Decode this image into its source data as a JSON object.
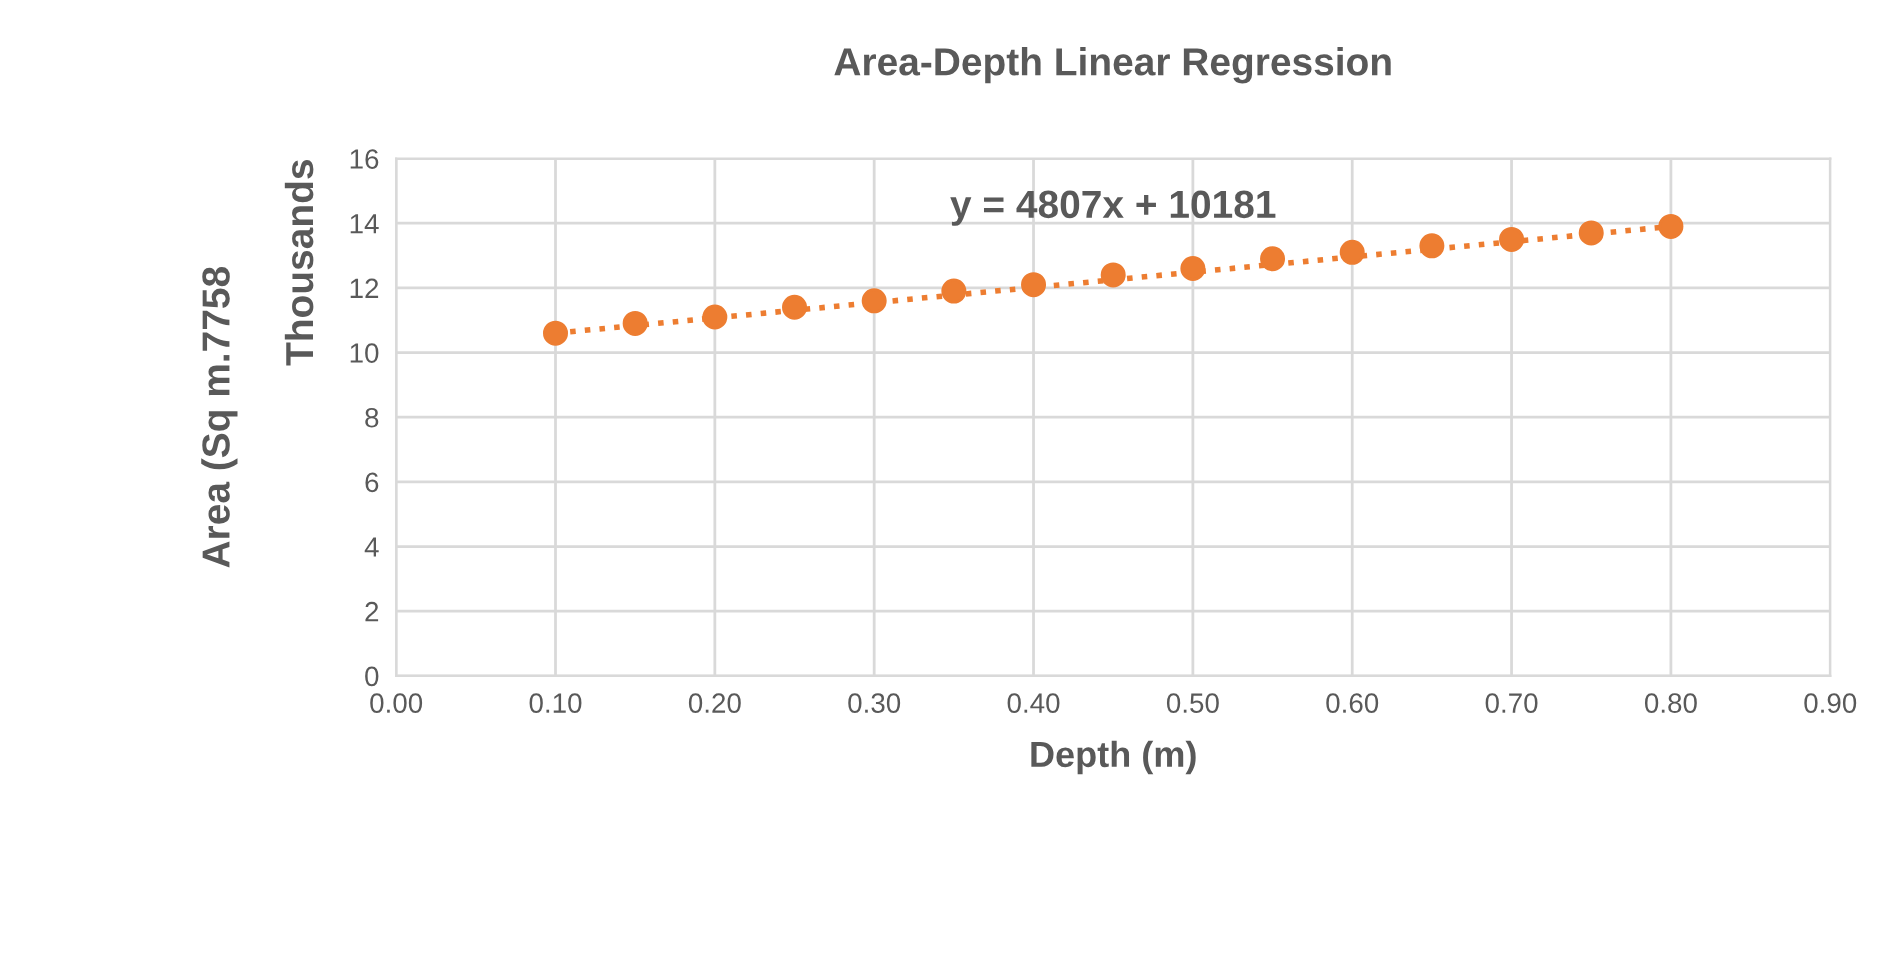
{
  "chart_data": {
    "type": "scatter",
    "title": "Area-Depth Linear Regression",
    "xlabel": "Depth (m)",
    "ylabel": "Area (Sq m.7758",
    "annotations": [
      "Thousands",
      "y = 4807x + 10181"
    ],
    "series": [
      {
        "color": "#ed7d31",
        "marker": "circle",
        "x": [
          0.1,
          0.15,
          0.2,
          0.25,
          0.3,
          0.35,
          0.4,
          0.45,
          0.5,
          0.55,
          0.6,
          0.65,
          0.7,
          0.75,
          0.8
        ],
        "values": [
          10.6,
          10.9,
          11.1,
          11.4,
          11.6,
          11.9,
          12.1,
          12.4,
          12.6,
          12.9,
          13.1,
          13.3,
          13.5,
          13.7,
          13.9
        ]
      },
      {
        "type": "line",
        "color": "#ed7d31",
        "line_style": "dotted",
        "x": [
          0.1,
          0.8
        ],
        "values": [
          10.6,
          13.9
        ]
      }
    ],
    "xlim": [
      0,
      0.9
    ],
    "xticks": [
      {
        "value": 0,
        "label": "0.00"
      },
      {
        "value": 0.1,
        "label": "0.10"
      },
      {
        "value": 0.2,
        "label": "0.20"
      },
      {
        "value": 0.3,
        "label": "0.30"
      },
      {
        "value": 0.4,
        "label": "0.40"
      },
      {
        "value": 0.5,
        "label": "0.50"
      },
      {
        "value": 0.6,
        "label": "0.60"
      },
      {
        "value": 0.7,
        "label": "0.70"
      },
      {
        "value": 0.8,
        "label": "0.80"
      },
      {
        "value": 0.9,
        "label": "0.90"
      }
    ],
    "ylim": [
      0,
      16
    ],
    "yticks": [
      0,
      2,
      4,
      6,
      8,
      10,
      12,
      14,
      16
    ],
    "grid": true
  }
}
